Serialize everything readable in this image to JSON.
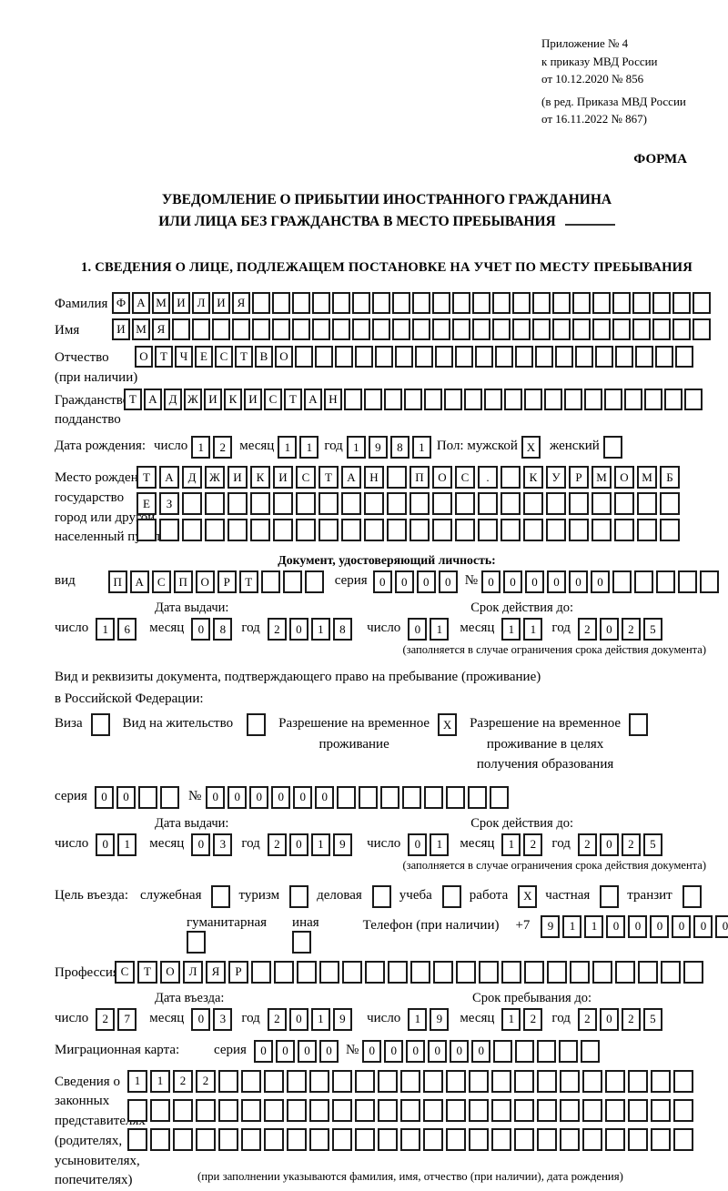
{
  "meta": {
    "appendix_lines": [
      "Приложение № 4",
      "к приказу МВД России",
      "от 10.12.2020 № 856"
    ],
    "edition_lines": [
      "(в ред. Приказа МВД России",
      "от 16.11.2022 № 867)"
    ],
    "form_word": "ФОРМА"
  },
  "title": {
    "line1": "УВЕДОМЛЕНИЕ О ПРИБЫТИИ ИНОСТРАННОГО ГРАЖДАНИНА",
    "line2": "ИЛИ ЛИЦА БЕЗ ГРАЖДАНСТВА В МЕСТО ПРЕБЫВАНИЯ"
  },
  "section1": {
    "heading": "1. СВЕДЕНИЯ О ЛИЦЕ, ПОДЛЕЖАЩЕМ ПОСТАНОВКЕ НА УЧЕТ ПО МЕСТУ ПРЕБЫВАНИЯ",
    "surname": {
      "label": "Фамилия",
      "text": "ФАМИЛИЯ",
      "count": 30
    },
    "firstname": {
      "label": "Имя",
      "text": "ИМЯ",
      "count": 30
    },
    "patronymic": {
      "label_lines": [
        "Отчество",
        "(при наличии)"
      ],
      "text": "ОТЧЕСТВО",
      "count": 28
    },
    "citizenship": {
      "label_lines": [
        "Гражданство,",
        "подданство"
      ],
      "text": "ТАДЖИКИСТАН",
      "count": 29
    },
    "birth_date": {
      "label": "Дата рождения:",
      "day_label": "число",
      "day": {
        "text": "12",
        "count": 2
      },
      "month_label": "месяц",
      "month": {
        "text": "11",
        "count": 2
      },
      "year_label": "год",
      "year": {
        "text": "1981",
        "count": 4
      },
      "sex_label": "Пол: мужской",
      "male": {
        "text": "X",
        "count": 1
      },
      "female_label": "женский",
      "female": {
        "text": "",
        "count": 1
      }
    },
    "birth_place": {
      "label_lines": [
        "Место рождения:",
        "государство",
        "город или другой",
        "населенный пункт"
      ],
      "rows": [
        {
          "text": "ТАДЖИКИСТАН ПОС. КУРМОМБ",
          "count": 24
        },
        {
          "text": "ЕЗ",
          "count": 24
        },
        {
          "text": "",
          "count": 24
        }
      ]
    },
    "identity_doc": {
      "heading": "Документ, удостоверяющий личность:",
      "kind_label": "вид",
      "kind": {
        "text": "ПАСПОРТ",
        "count": 10
      },
      "series_label": "серия",
      "series": {
        "text": "0000",
        "count": 4
      },
      "number_label": "№",
      "number": {
        "text": "000000",
        "count": 11
      },
      "issue_heading": "Дата выдачи:",
      "issue": {
        "day_label": "число",
        "day": {
          "text": "16",
          "count": 2
        },
        "month_label": "месяц",
        "month": {
          "text": "08",
          "count": 2
        },
        "year_label": "год",
        "year": {
          "text": "2018",
          "count": 4
        }
      },
      "valid_heading": "Срок действия до:",
      "valid": {
        "day_label": "число",
        "day": {
          "text": "01",
          "count": 2
        },
        "month_label": "месяц",
        "month": {
          "text": "11",
          "count": 2
        },
        "year_label": "год",
        "year": {
          "text": "2025",
          "count": 4
        }
      },
      "note": "(заполняется в случае ограничения срока действия документа)"
    },
    "residence_doc": {
      "intro_line1": "Вид и реквизиты документа, подтверждающего право на пребывание (проживание)",
      "intro_line2": "в Российской Федерации:",
      "options": [
        {
          "label": "Виза",
          "box": {
            "text": "",
            "count": 1
          }
        },
        {
          "label": "Вид на жительство",
          "box": {
            "text": "",
            "count": 1
          }
        },
        {
          "label_lines": [
            "Разрешение на временное",
            "проживание"
          ],
          "box": {
            "text": "X",
            "count": 1
          }
        },
        {
          "label_lines": [
            "Разрешение на временное",
            "проживание в целях",
            "получения образования"
          ],
          "box": {
            "text": "",
            "count": 1
          }
        }
      ],
      "series_label": "серия",
      "series": {
        "text": "00",
        "count": 4
      },
      "number_label": "№",
      "number": {
        "text": "000000",
        "count": 14
      },
      "issue_heading": "Дата выдачи:",
      "issue": {
        "day_label": "число",
        "day": {
          "text": "01",
          "count": 2
        },
        "month_label": "месяц",
        "month": {
          "text": "03",
          "count": 2
        },
        "year_label": "год",
        "year": {
          "text": "2019",
          "count": 4
        }
      },
      "valid_heading": "Срок действия до:",
      "valid": {
        "day_label": "число",
        "day": {
          "text": "01",
          "count": 2
        },
        "month_label": "месяц",
        "month": {
          "text": "12",
          "count": 2
        },
        "year_label": "год",
        "year": {
          "text": "2025",
          "count": 4
        }
      },
      "note": "(заполняется в случае ограничения срока действия документа)"
    },
    "purpose": {
      "label": "Цель въезда:",
      "options": [
        {
          "label": "служебная",
          "box": {
            "text": "",
            "count": 1
          }
        },
        {
          "label": "туризм",
          "box": {
            "text": "",
            "count": 1
          }
        },
        {
          "label": "деловая",
          "box": {
            "text": "",
            "count": 1
          }
        },
        {
          "label": "учеба",
          "box": {
            "text": "",
            "count": 1
          }
        },
        {
          "label": "работа",
          "box": {
            "text": "X",
            "count": 1
          }
        },
        {
          "label": "частная",
          "box": {
            "text": "",
            "count": 1
          }
        },
        {
          "label": "транзит",
          "box": {
            "text": "",
            "count": 1
          }
        }
      ],
      "options2": [
        {
          "label": "гуманитарная",
          "box": {
            "text": "",
            "count": 1
          }
        },
        {
          "label": "иная",
          "box": {
            "text": "",
            "count": 1
          }
        }
      ],
      "phone_label": "Телефон (при наличии)",
      "phone_prefix": "+7",
      "phone": {
        "text": "911000000",
        "count": 10
      }
    },
    "profession": {
      "label": "Профессия",
      "text": "СТОЛЯР",
      "count": 26
    },
    "entry_heading": "Дата въезда:",
    "entry": {
      "day_label": "число",
      "day": {
        "text": "27",
        "count": 2
      },
      "month_label": "месяц",
      "month": {
        "text": "03",
        "count": 2
      },
      "year_label": "год",
      "year": {
        "text": "2019",
        "count": 4
      }
    },
    "stay_heading": "Срок пребывания до:",
    "stay": {
      "day_label": "число",
      "day": {
        "text": "19",
        "count": 2
      },
      "month_label": "месяц",
      "month": {
        "text": "12",
        "count": 2
      },
      "year_label": "год",
      "year": {
        "text": "2025",
        "count": 4
      }
    },
    "migration_card": {
      "label": "Миграционная карта:",
      "series_label": "серия",
      "series": {
        "text": "0000",
        "count": 4
      },
      "number_label": "№",
      "number": {
        "text": "000000",
        "count": 11
      }
    },
    "legal_reps": {
      "label_lines": [
        "Сведения о",
        "законных",
        "представителях",
        "(родителях,",
        "усыновителях,",
        "попечителях)"
      ],
      "rows": [
        {
          "text": "1122",
          "count": 25
        },
        {
          "text": "",
          "count": 25
        },
        {
          "text": "",
          "count": 25
        }
      ],
      "note": "(при заполнении указываются фамилия, имя, отчество (при наличии), дата рождения)"
    }
  }
}
